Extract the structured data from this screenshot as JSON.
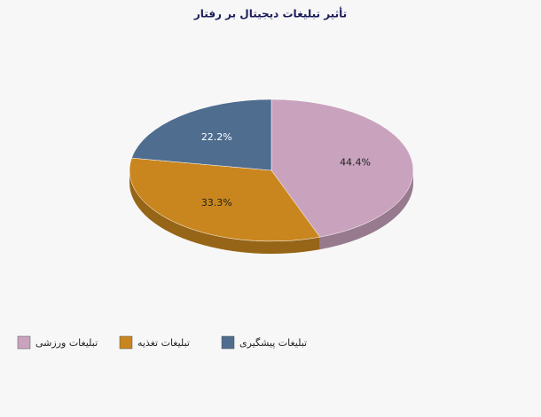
{
  "chart_data": {
    "type": "pie",
    "title": "تأثیر تبلیغات دیجیتال بر رفتار",
    "categories": [
      "تبلیغات ورزشی",
      "تبلیغات تغذیه",
      "تبلیغات پیشگیری"
    ],
    "values": [
      44.4,
      33.3,
      22.2
    ],
    "value_labels": [
      "44.4%",
      "33.3%",
      "22.2%"
    ],
    "colors": [
      "#c9a3bd",
      "#c9861e",
      "#4f6d8f"
    ]
  }
}
